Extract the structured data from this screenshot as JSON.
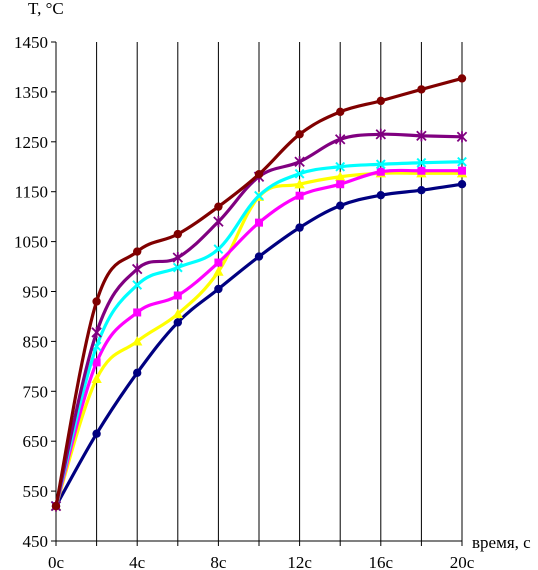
{
  "chart_data": {
    "type": "line",
    "title": "",
    "ylabel": "T, °C",
    "xlabel": "время, с",
    "x": [
      0,
      2,
      4,
      6,
      8,
      10,
      12,
      14,
      16,
      18,
      20
    ],
    "x_ticks": [
      0,
      4,
      8,
      12,
      16,
      20
    ],
    "x_tick_labels": [
      "0c",
      "4c",
      "8c",
      "12c",
      "16c",
      "20c"
    ],
    "y_ticks": [
      450,
      550,
      650,
      750,
      850,
      950,
      1050,
      1150,
      1250,
      1350,
      1450
    ],
    "y_tick_labels": [
      "450",
      "550",
      "650",
      "750",
      "850",
      "950",
      "1050",
      "1150",
      "1250",
      "1350",
      "1450"
    ],
    "xlim": [
      0,
      20
    ],
    "ylim": [
      450,
      1450
    ],
    "grid": "vertical",
    "series": [
      {
        "color": "#000080",
        "marker": "circle",
        "values": [
          520,
          665,
          787,
          888,
          955,
          1020,
          1078,
          1122,
          1143,
          1153,
          1165
        ]
      },
      {
        "color": "#FFFF00",
        "marker": "triangle",
        "values": [
          520,
          775,
          850,
          905,
          990,
          1140,
          1165,
          1180,
          1187,
          1187,
          1187
        ]
      },
      {
        "color": "#FF00FF",
        "marker": "square",
        "values": [
          520,
          808,
          908,
          942,
          1008,
          1088,
          1142,
          1165,
          1190,
          1192,
          1192
        ]
      },
      {
        "color": "#00FFFF",
        "marker": "x",
        "values": [
          520,
          840,
          963,
          998,
          1035,
          1142,
          1186,
          1200,
          1205,
          1208,
          1210
        ]
      },
      {
        "color": "#800080",
        "marker": "star",
        "values": [
          520,
          868,
          995,
          1018,
          1090,
          1180,
          1210,
          1255,
          1265,
          1262,
          1260
        ]
      },
      {
        "color": "#800000",
        "marker": "circle",
        "values": [
          520,
          930,
          1030,
          1065,
          1120,
          1185,
          1265,
          1310,
          1332,
          1355,
          1377
        ]
      }
    ]
  }
}
